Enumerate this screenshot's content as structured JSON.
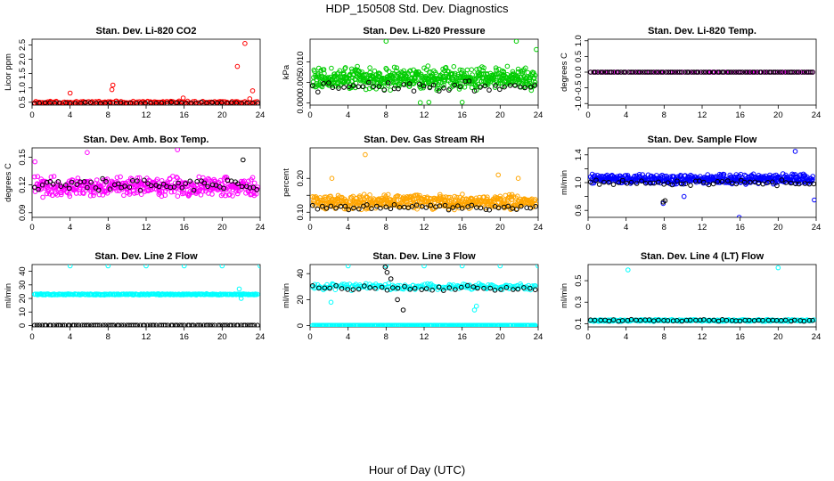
{
  "figure": {
    "title": "HDP_150508  Std. Dev. Diagnostics",
    "xlabel": "Hour of Day (UTC)"
  },
  "chart_data": [
    {
      "type": "scatter",
      "title": "Stan. Dev. Li-820 CO2",
      "ylabel": "Licor ppm",
      "xlim": [
        0,
        24
      ],
      "ylim": [
        0.4,
        2.7
      ],
      "xticks": [
        0,
        4,
        8,
        12,
        16,
        20,
        24
      ],
      "yticks": [
        0.5,
        1.0,
        1.5,
        2.0,
        2.5
      ],
      "ytick_labels": [
        "0.5",
        "1.0",
        "1.5",
        "2.0",
        "2.5"
      ],
      "grid": false,
      "series": [
        {
          "color": "#ff0000",
          "baseline": 0.5,
          "spread": 0.05,
          "count": 150,
          "seed": 11,
          "x": [
            4.0,
            8.4,
            8.5,
            21.6,
            22.4,
            23.2,
            22.9,
            15.9
          ],
          "y": [
            0.82,
            0.94,
            1.1,
            1.75,
            2.55,
            0.9,
            0.62,
            0.65
          ]
        },
        {
          "color": "#000000",
          "baseline": 0.47,
          "spread": 0.03,
          "count": 45,
          "seed": 12,
          "x": [],
          "y": []
        }
      ]
    },
    {
      "type": "scatter",
      "title": "Stan. Dev. Li-820 Pressure",
      "ylabel": "kPa",
      "xlim": [
        0,
        24
      ],
      "ylim": [
        -0.0005,
        0.0155
      ],
      "xticks": [
        0,
        4,
        8,
        12,
        16,
        20,
        24
      ],
      "yticks": [
        0.0,
        0.005,
        0.01
      ],
      "ytick_labels": [
        "0.000",
        "0.005",
        "0.010"
      ],
      "grid": false,
      "series": [
        {
          "color": "#00cc00",
          "baseline": 0.006,
          "spread": 0.003,
          "count": 600,
          "seed": 21,
          "x": [
            8.0,
            21.7,
            23.8,
            11.6,
            12.5,
            16.0
          ],
          "y": [
            0.015,
            0.015,
            0.013,
            0.0001,
            0.0002,
            0.0002
          ]
        },
        {
          "color": "#000000",
          "baseline": 0.004,
          "spread": 0.0015,
          "count": 45,
          "seed": 22,
          "x": [],
          "y": []
        }
      ]
    },
    {
      "type": "scatter",
      "title": "Stan. Dev. Li-820 Temp.",
      "ylabel": "degrees C",
      "xlim": [
        0,
        24
      ],
      "ylim": [
        -1.05,
        1.05
      ],
      "xticks": [
        0,
        4,
        8,
        12,
        16,
        20,
        24
      ],
      "yticks": [
        -1.0,
        -0.5,
        0.0,
        0.5,
        1.0
      ],
      "ytick_labels": [
        "-1.0",
        "-0.5",
        "0.0",
        "0.5",
        "1.0"
      ],
      "grid": false,
      "series": [
        {
          "color": "#ff00ff",
          "baseline": 0.0,
          "spread": 0.0,
          "count": 96,
          "seed": 31,
          "x": [],
          "y": []
        },
        {
          "color": "#000000",
          "baseline": 0.0,
          "spread": 0.0,
          "count": 96,
          "seed": 32,
          "x": [],
          "y": []
        }
      ]
    },
    {
      "type": "scatter",
      "title": "Stan. Dev. Amb. Box Temp.",
      "ylabel": "degrees C",
      "xlim": [
        0,
        24
      ],
      "ylim": [
        0.085,
        0.16
      ],
      "xticks": [
        0,
        4,
        8,
        12,
        16,
        20,
        24
      ],
      "yticks": [
        0.09,
        0.12,
        0.15
      ],
      "ytick_labels": [
        "0.09",
        "0.12",
        "0.15"
      ],
      "grid": false,
      "series": [
        {
          "color": "#ff00ff",
          "baseline": 0.118,
          "spread": 0.012,
          "count": 450,
          "seed": 41,
          "x": [
            0.3,
            5.8,
            15.3
          ],
          "y": [
            0.145,
            0.155,
            0.158
          ]
        },
        {
          "color": "#000000",
          "baseline": 0.12,
          "spread": 0.008,
          "count": 60,
          "seed": 42,
          "x": [
            22.2
          ],
          "y": [
            0.147
          ]
        }
      ]
    },
    {
      "type": "scatter",
      "title": "Stan. Dev. Gas Stream RH",
      "ylabel": "percent",
      "xlim": [
        0,
        24
      ],
      "ylim": [
        0.085,
        0.29
      ],
      "xticks": [
        0,
        4,
        8,
        12,
        16,
        20,
        24
      ],
      "yticks": [
        0.1,
        0.15,
        0.2
      ],
      "ytick_labels": [
        "0.10",
        "",
        "0.20"
      ],
      "grid": false,
      "series": [
        {
          "color": "#ffa500",
          "baseline": 0.13,
          "spread": 0.025,
          "count": 500,
          "seed": 51,
          "x": [
            5.8,
            2.3,
            19.8,
            21.9
          ],
          "y": [
            0.27,
            0.2,
            0.21,
            0.2
          ]
        },
        {
          "color": "#000000",
          "baseline": 0.115,
          "spread": 0.012,
          "count": 50,
          "seed": 52,
          "x": [],
          "y": []
        }
      ]
    },
    {
      "type": "scatter",
      "title": "Stan. Dev. Sample Flow",
      "ylabel": "ml/min",
      "xlim": [
        0,
        24
      ],
      "ylim": [
        0.5,
        1.5
      ],
      "xticks": [
        0,
        4,
        8,
        12,
        16,
        20,
        24
      ],
      "yticks": [
        0.6,
        0.8,
        1.0,
        1.2,
        1.4
      ],
      "ytick_labels": [
        "0.6",
        "",
        "1.0",
        "",
        "1.4"
      ],
      "grid": false,
      "series": [
        {
          "color": "#0000ff",
          "baseline": 1.05,
          "spread": 0.08,
          "count": 500,
          "seed": 61,
          "x": [
            15.9,
            21.8,
            23.8,
            7.9,
            10.1
          ],
          "y": [
            0.5,
            1.45,
            0.75,
            0.7,
            0.8
          ]
        },
        {
          "color": "#000000",
          "baseline": 1.0,
          "spread": 0.05,
          "count": 50,
          "seed": 62,
          "x": [
            7.9,
            8.1
          ],
          "y": [
            0.72,
            0.74
          ]
        }
      ]
    },
    {
      "type": "scatter",
      "title": "Stan. Dev. Line 2 Flow",
      "ylabel": "ml/min",
      "xlim": [
        0,
        24
      ],
      "ylim": [
        -1,
        45
      ],
      "xticks": [
        0,
        4,
        8,
        12,
        16,
        20,
        24
      ],
      "yticks": [
        0,
        10,
        20,
        30,
        40
      ],
      "ytick_labels": [
        "0",
        "10",
        "20",
        "30",
        "40"
      ],
      "grid": false,
      "series": [
        {
          "color": "#00ffff",
          "baseline": 23,
          "spread": 0.5,
          "count": 300,
          "seed": 71,
          "x": [
            4.0,
            8.0,
            12.0,
            16.0,
            20.0,
            24.0,
            21.8,
            22.0
          ],
          "y": [
            44,
            44,
            44,
            44,
            44,
            44,
            27,
            20
          ]
        },
        {
          "color": "#000000",
          "baseline": 0.2,
          "spread": 0.0,
          "count": 96,
          "seed": 72,
          "x": [],
          "y": []
        }
      ]
    },
    {
      "type": "scatter",
      "title": "Stan. Dev. Line 3 Flow",
      "ylabel": "ml/min",
      "xlim": [
        0,
        24
      ],
      "ylim": [
        -1,
        47
      ],
      "xticks": [
        0,
        4,
        8,
        12,
        16,
        20,
        24
      ],
      "yticks": [
        0,
        20,
        40
      ],
      "ytick_labels": [
        "0",
        "20",
        "40"
      ],
      "grid": false,
      "series": [
        {
          "color": "#00ffff",
          "baseline": 30,
          "spread": 3,
          "count": 200,
          "seed": 81,
          "x": [
            4.0,
            8.0,
            12.0,
            16.0,
            20.0,
            24.0,
            2.2,
            17.3,
            17.5
          ],
          "y": [
            46,
            46,
            46,
            46,
            46,
            46,
            18,
            12,
            15
          ]
        },
        {
          "color": "#00ffff",
          "baseline": 0.2,
          "spread": 0.0,
          "count": 300,
          "seed": 83,
          "x": [],
          "y": []
        },
        {
          "color": "#000000",
          "baseline": 29,
          "spread": 2.5,
          "count": 40,
          "seed": 82,
          "x": [
            7.9,
            8.1,
            9.2,
            9.8,
            8.5
          ],
          "y": [
            45,
            41,
            20,
            12,
            36
          ]
        }
      ]
    },
    {
      "type": "scatter",
      "title": "Stan. Dev. Line 4 (LT) Flow",
      "ylabel": "ml/min",
      "xlim": [
        0,
        24
      ],
      "ylim": [
        0.07,
        0.65
      ],
      "xticks": [
        0,
        4,
        8,
        12,
        16,
        20,
        24
      ],
      "yticks": [
        0.1,
        0.3,
        0.5
      ],
      "ytick_labels": [
        "0.1",
        "0.3",
        "0.5"
      ],
      "grid": false,
      "series": [
        {
          "color": "#00ffff",
          "baseline": 0.13,
          "spread": 0.01,
          "count": 300,
          "seed": 91,
          "x": [
            4.2,
            20.0
          ],
          "y": [
            0.6,
            0.62
          ]
        },
        {
          "color": "#000000",
          "baseline": 0.13,
          "spread": 0.01,
          "count": 50,
          "seed": 92,
          "x": [],
          "y": []
        }
      ]
    }
  ]
}
